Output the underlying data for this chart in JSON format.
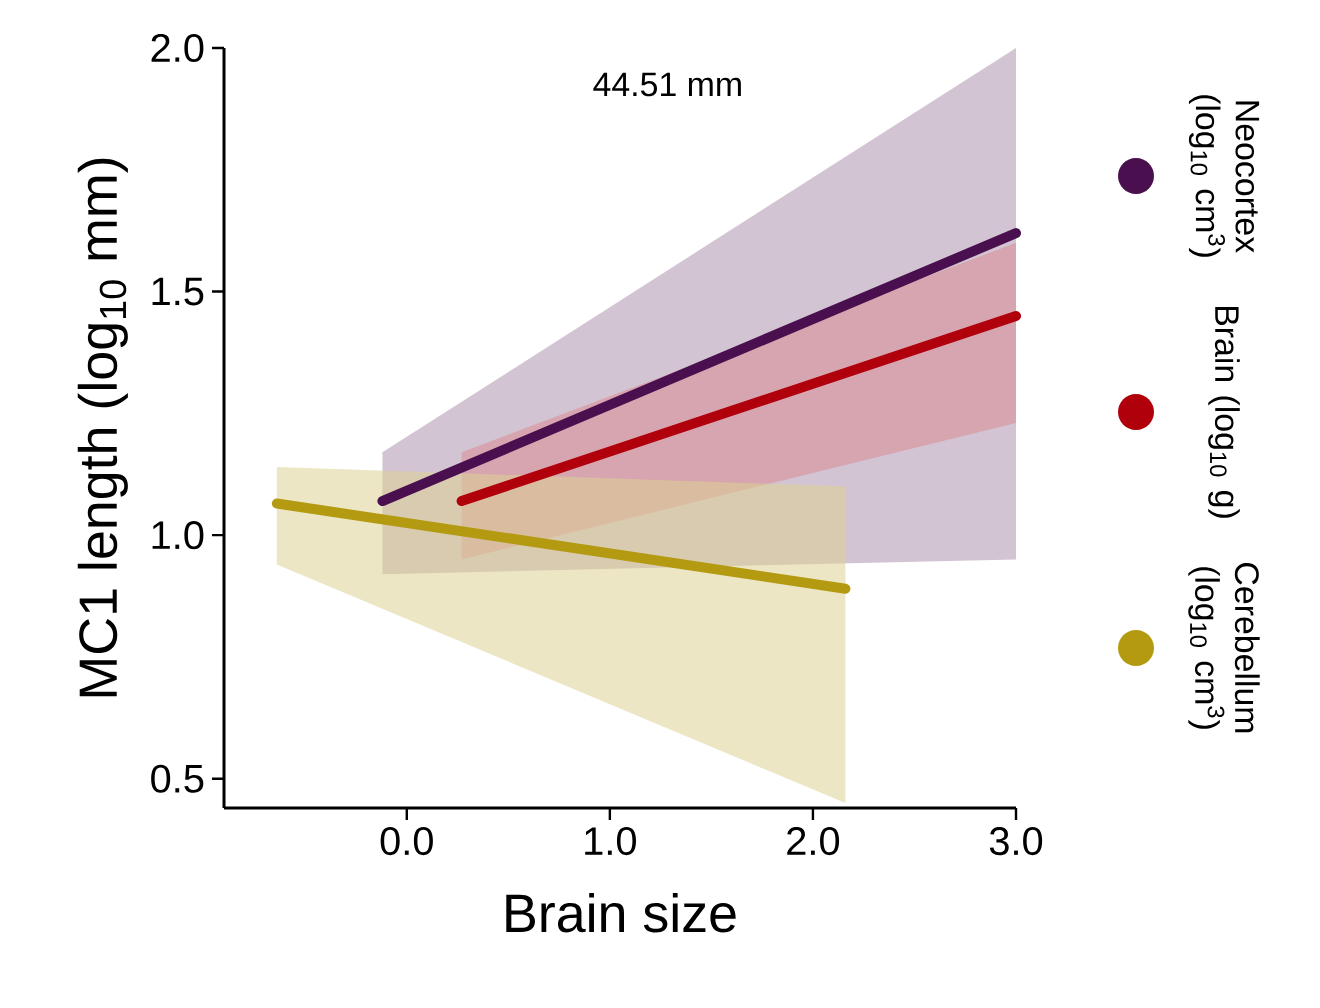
{
  "chart_data": {
    "type": "line",
    "xlabel": "Brain size",
    "ylabel": "MC1 length (log$_{10}$ mm)",
    "xlim": [
      -0.9,
      3.0
    ],
    "ylim": [
      0.44,
      2.0
    ],
    "xticks": [
      {
        "value": 0,
        "label": "0.0"
      },
      {
        "value": 1,
        "label": "1.0"
      },
      {
        "value": 2,
        "label": "2.0"
      },
      {
        "value": 3,
        "label": "3.0"
      }
    ],
    "yticks": [
      {
        "value": 0.5,
        "label": "0.5"
      },
      {
        "value": 1.0,
        "label": "1.0"
      },
      {
        "value": 1.5,
        "label": "1.5"
      },
      {
        "value": 2.0,
        "label": "2.0"
      }
    ],
    "series": [
      {
        "name": "Neocortex (log$_{10}$ cm$^{3}$)",
        "color": "#4a0f4e",
        "x": [
          -0.12,
          3.0
        ],
        "values": [
          1.07,
          1.62
        ],
        "lower": [
          0.92,
          0.95
        ],
        "upper": [
          1.17,
          2.0
        ]
      },
      {
        "name": "Brain (log$_{10}$ g)",
        "color": "#b0000b",
        "x": [
          0.27,
          3.0
        ],
        "values": [
          1.07,
          1.45
        ],
        "lower": [
          0.95,
          1.23
        ],
        "upper": [
          1.17,
          1.6
        ]
      },
      {
        "name": "Cerebellum (log$_{10}$ cm$^{3}$)",
        "color": "#b39a10",
        "x": [
          -0.64,
          2.16
        ],
        "values": [
          1.065,
          0.89
        ],
        "lower": [
          0.94,
          0.45
        ],
        "upper": [
          1.14,
          1.1
        ]
      }
    ],
    "annotations": [
      "44.51 mm"
    ],
    "legend": "right",
    "grid": false,
    "marker": "none",
    "line_style": "solid"
  }
}
